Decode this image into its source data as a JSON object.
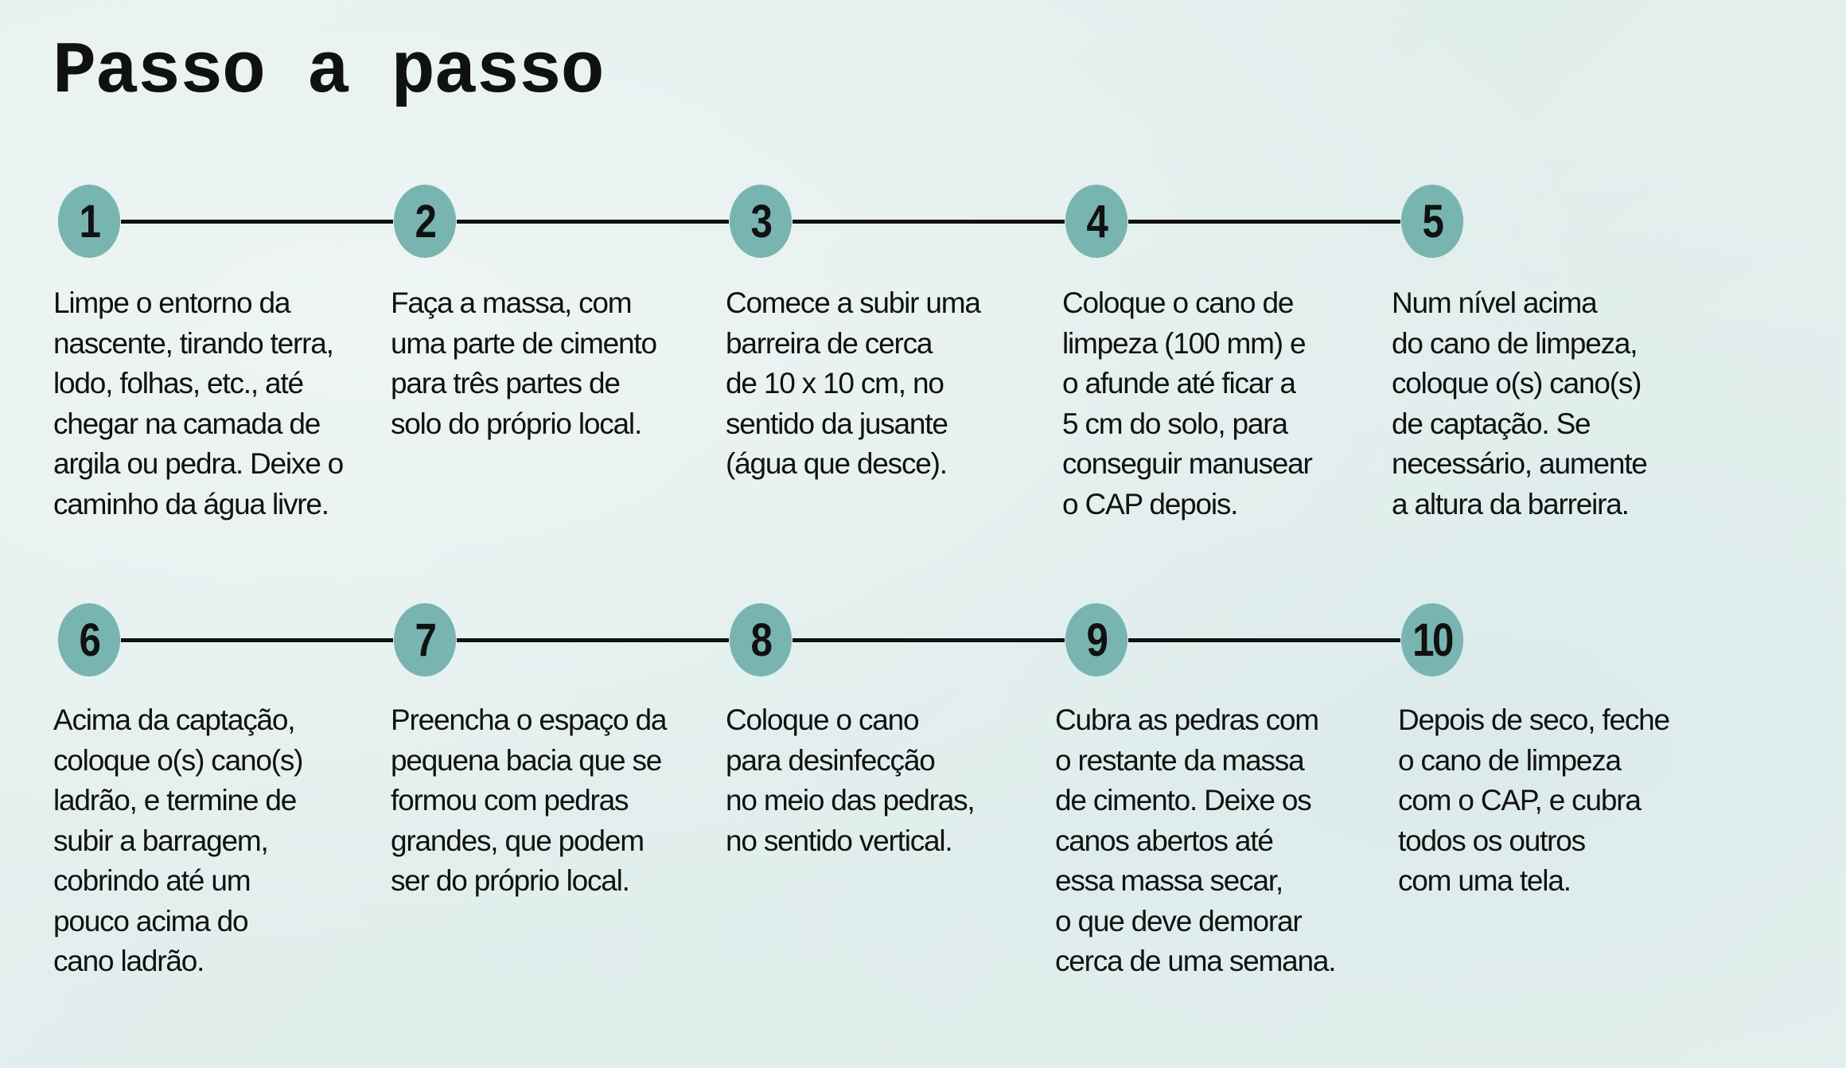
{
  "title": "Passo a passo",
  "colors": {
    "circle": "#78b5b0",
    "line": "#111111",
    "background": "#e3efee"
  },
  "steps": [
    {
      "number": "1",
      "lines": [
        "Limpe o entorno da",
        "nascente, tirando terra,",
        "lodo, folhas, etc., até",
        "chegar na camada de",
        "argila ou pedra. Deixe o",
        "caminho da água livre."
      ]
    },
    {
      "number": "2",
      "lines": [
        "Faça a massa, com",
        "uma parte de cimento",
        "para três partes de",
        "solo do próprio local."
      ]
    },
    {
      "number": "3",
      "lines": [
        "Comece a subir uma",
        "barreira de cerca",
        "de 10 x 10 cm, no",
        "sentido da jusante",
        "(água que desce)."
      ]
    },
    {
      "number": "4",
      "lines": [
        "Coloque o cano de",
        "limpeza (100 mm) e",
        "o afunde até ficar a",
        "5 cm do solo, para",
        "conseguir manusear",
        "o CAP depois."
      ]
    },
    {
      "number": "5",
      "lines": [
        "Num nível acima",
        "do cano de limpeza,",
        "coloque o(s) cano(s)",
        "de captação. Se",
        "necessário, aumente",
        "a altura da barreira."
      ]
    },
    {
      "number": "6",
      "lines": [
        "Acima da captação,",
        "coloque o(s) cano(s)",
        "ladrão, e termine de",
        "subir a barragem,",
        "cobrindo até um",
        "pouco acima do",
        "cano ladrão."
      ]
    },
    {
      "number": "7",
      "lines": [
        "Preencha o espaço da",
        "pequena bacia que se",
        "formou com pedras",
        "grandes, que podem",
        "ser do próprio local."
      ]
    },
    {
      "number": "8",
      "lines": [
        "Coloque o cano",
        "para desinfecção",
        "no meio das pedras,",
        "no sentido vertical."
      ]
    },
    {
      "number": "9",
      "lines": [
        "Cubra as pedras com",
        "o restante da massa",
        "de cimento. Deixe os",
        "canos abertos até",
        "essa massa secar,",
        "o que deve demorar",
        "cerca de uma semana."
      ]
    },
    {
      "number": "10",
      "lines": [
        "Depois de seco, feche",
        "o cano de limpeza",
        "com o CAP, e cubra",
        "todos os outros",
        "com uma tela."
      ]
    }
  ]
}
